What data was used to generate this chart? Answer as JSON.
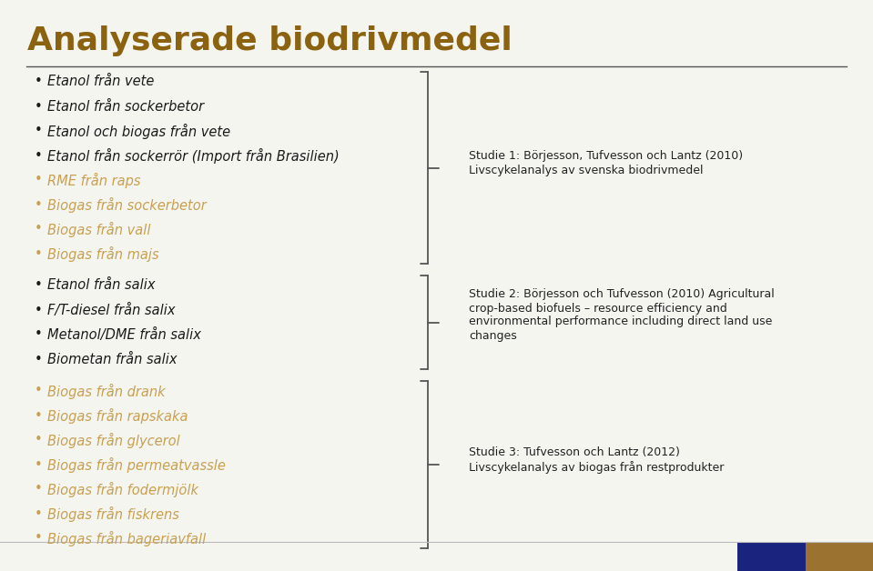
{
  "title": "Analyserade biodrivmedel",
  "title_color": "#8B6310",
  "title_fontsize": 26,
  "bg_color": "#F5F5F0",
  "separator_color": "#555555",
  "bullet_color_dark": "#1A1A1A",
  "bullet_color_light": "#C8A050",
  "items_group1": [
    "Etanol från vete",
    "Etanol från sockerbetor",
    "Etanol och biogas från vete",
    "Etanol från sockerrör (Import från Brasilien)",
    "RME från raps",
    "Biogas från sockerbetor",
    "Biogas från vall",
    "Biogas från majs"
  ],
  "items_group1_dark": [
    true,
    true,
    true,
    true,
    false,
    false,
    false,
    false
  ],
  "items_group2": [
    "Etanol från salix",
    "F/T-diesel från salix",
    "Metanol/DME från salix",
    "Biometan från salix"
  ],
  "items_group2_dark": [
    true,
    true,
    true,
    true
  ],
  "items_group3": [
    "Biogas från drank",
    "Biogas från rapskaka",
    "Biogas från glycerol",
    "Biogas från permeatvassle",
    "Biogas från fodermjölk",
    "Biogas från fiskrens",
    "Biogas från bageriavfall"
  ],
  "items_group3_dark": [
    false,
    false,
    false,
    false,
    false,
    false,
    false
  ],
  "study1_text": "Studie 1: Börjesson, Tufvesson och Lantz (2010)\nLivscykelanalys av svenska biodrivmedel",
  "study2_text": "Studie 2: Börjesson och Tufvesson (2010) Agricultural\ncrop-based biofuels – resource efficiency and\nenvironmental performance including direct land use\nchanges",
  "study3_text": "Studie 3: Tufvesson och Lantz (2012)\nLivscykelanalys av biogas från restprodukter",
  "study_text_color": "#222222",
  "study_fontsize": 9.0,
  "item_fontsize": 10.5,
  "bracket_color": "#555555",
  "box1_color": "#1A237E",
  "box2_color": "#9B7230",
  "footer_line_color": "#BBBBBB"
}
